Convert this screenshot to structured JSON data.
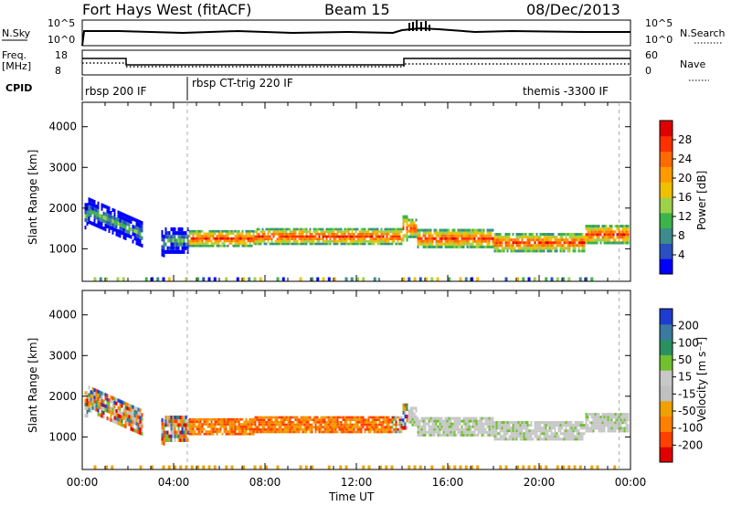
{
  "header": {
    "station": "Fort Hays West (fitACF)",
    "beam": "Beam 15",
    "date": "08/Dec/2013"
  },
  "strip": {
    "nsky_label": "N.Sky",
    "nsky_ticks": [
      "10^5",
      "10^0"
    ],
    "nsearch_label": "N.Search",
    "nsearch_ticks": [
      "10^5",
      "10^0"
    ],
    "freq_label": "Freq.",
    "freq_unit": "[MHz]",
    "freq_ticks": [
      "18",
      "8"
    ],
    "nave_label": "Nave",
    "nave_ticks": [
      "60",
      "0"
    ],
    "cpid_label": "CPID",
    "cpid_modes": [
      {
        "text": "rbsp 200 IF",
        "start_h": 0
      },
      {
        "text": "rbsp CT-trig 220 IF",
        "start_h": 4.6
      },
      {
        "text": "themis -3300 IF",
        "start_h": 23.5
      }
    ]
  },
  "chart_data": [
    {
      "type": "heatmap",
      "panel": "power",
      "xlabel": "",
      "ylabel": "Slant Range [km]",
      "xlim_hours": [
        0,
        24
      ],
      "ylim": [
        200,
        4600
      ],
      "yticks": [
        "1000",
        "2000",
        "3000",
        "4000"
      ],
      "colorbar": {
        "label": "Power [dB]",
        "ticks": [
          "28",
          "24",
          "20",
          "16",
          "12",
          "8",
          "4"
        ],
        "colors": [
          "#0000ff",
          "#2a4fc0",
          "#3d8c8c",
          "#3cb44a",
          "#9ed14a",
          "#f0c000",
          "#ff9a00",
          "#ff6a00",
          "#ff3000",
          "#e00000"
        ]
      },
      "bands": [
        {
          "from_h": 4.6,
          "to_h": 14.0,
          "center_km": [
            1200,
            1300,
            1250,
            1350
          ],
          "note_values": "1000-1500 km"
        },
        {
          "from_h": 14.2,
          "to_h": 24.0,
          "center_km": [
            1250,
            1100,
            1150,
            1300
          ]
        }
      ]
    },
    {
      "type": "heatmap",
      "panel": "velocity",
      "xlabel": "Time UT",
      "ylabel": "Slant Range [km]",
      "xlim_hours": [
        0,
        24
      ],
      "ylim": [
        200,
        4600
      ],
      "yticks": [
        "1000",
        "2000",
        "3000",
        "4000"
      ],
      "xticks": [
        "00:00",
        "04:00",
        "08:00",
        "12:00",
        "16:00",
        "20:00",
        "00:00"
      ],
      "colorbar": {
        "label": "Velocity [m s⁻¹]",
        "ticks": [
          "200",
          "100",
          "50",
          "15",
          "-15",
          "-50",
          "-100",
          "-200"
        ],
        "colors": [
          "#e00000",
          "#ff4000",
          "#ff8000",
          "#f0a000",
          "#c0c0c0",
          "#c8c8c8",
          "#70c030",
          "#2a9060",
          "#3a7aa0",
          "#1e3cd0"
        ]
      }
    }
  ],
  "colors": {
    "ground_scatter": "#b8b8b8",
    "axis": "#000000"
  }
}
